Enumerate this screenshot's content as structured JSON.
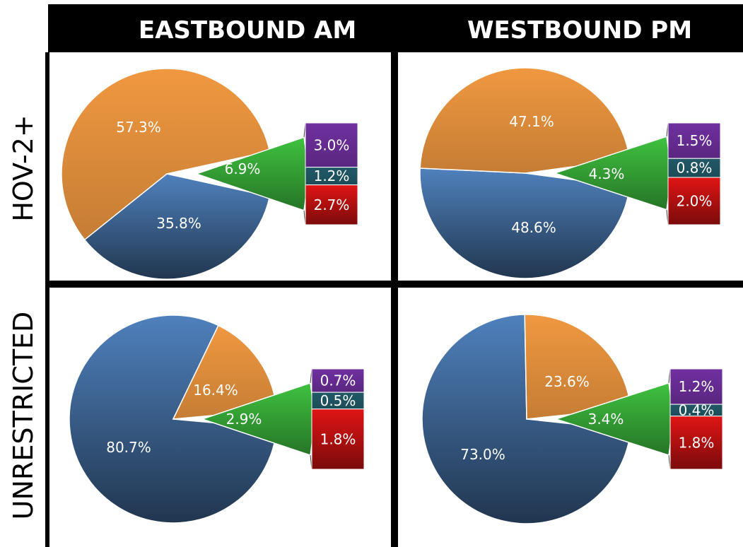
{
  "header": {
    "columns": [
      "EASTBOUND AM",
      "WESTBOUND PM"
    ],
    "rows": [
      "HOV-2+",
      "UNRESTRICTED"
    ]
  },
  "colors": {
    "blue": "#4f81bd",
    "orange": "#f09840",
    "green": "#3fc23f",
    "purple": "#7030a0",
    "teal": "#215967",
    "red": "#e01414"
  },
  "chart_data": [
    {
      "type": "pie",
      "title": "",
      "panel": "EASTBOUND AM / HOV-2+",
      "slices": [
        {
          "label": "35.8%",
          "value": 35.8,
          "color": "blue"
        },
        {
          "label": "57.3%",
          "value": 57.3,
          "color": "orange"
        },
        {
          "label": "6.9%",
          "value": 6.9,
          "color": "green"
        }
      ],
      "breakdown": [
        {
          "label": "3.0%",
          "value": 3.0,
          "color": "purple"
        },
        {
          "label": "1.2%",
          "value": 1.2,
          "color": "teal"
        },
        {
          "label": "2.7%",
          "value": 2.7,
          "color": "red"
        }
      ]
    },
    {
      "type": "pie",
      "title": "",
      "panel": "WESTBOUND PM / HOV-2+",
      "slices": [
        {
          "label": "48.6%",
          "value": 48.6,
          "color": "blue"
        },
        {
          "label": "47.1%",
          "value": 47.1,
          "color": "orange"
        },
        {
          "label": "4.3%",
          "value": 4.3,
          "color": "green"
        }
      ],
      "breakdown": [
        {
          "label": "1.5%",
          "value": 1.5,
          "color": "purple"
        },
        {
          "label": "0.8%",
          "value": 0.8,
          "color": "teal"
        },
        {
          "label": "2.0%",
          "value": 2.0,
          "color": "red"
        }
      ]
    },
    {
      "type": "pie",
      "title": "",
      "panel": "EASTBOUND AM / UNRESTRICTED",
      "slices": [
        {
          "label": "80.7%",
          "value": 80.7,
          "color": "blue"
        },
        {
          "label": "16.4%",
          "value": 16.4,
          "color": "orange"
        },
        {
          "label": "2.9%",
          "value": 2.9,
          "color": "green"
        }
      ],
      "breakdown": [
        {
          "label": "0.7%",
          "value": 0.7,
          "color": "purple"
        },
        {
          "label": "0.5%",
          "value": 0.5,
          "color": "teal"
        },
        {
          "label": "1.8%",
          "value": 1.8,
          "color": "red"
        }
      ]
    },
    {
      "type": "pie",
      "title": "",
      "panel": "WESTBOUND PM / UNRESTRICTED",
      "slices": [
        {
          "label": "73.0%",
          "value": 73.0,
          "color": "blue"
        },
        {
          "label": "23.6%",
          "value": 23.6,
          "color": "orange"
        },
        {
          "label": "3.4%",
          "value": 3.4,
          "color": "green"
        }
      ],
      "breakdown": [
        {
          "label": "1.2%",
          "value": 1.2,
          "color": "purple"
        },
        {
          "label": "0.4%",
          "value": 0.4,
          "color": "teal"
        },
        {
          "label": "1.8%",
          "value": 1.8,
          "color": "red"
        }
      ]
    }
  ]
}
